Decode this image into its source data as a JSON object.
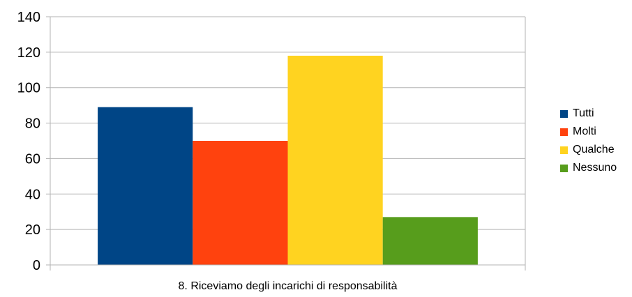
{
  "chart_data": {
    "type": "bar",
    "categories": [
      "8. Riceviamo degli incarichi di responsabilità"
    ],
    "series": [
      {
        "name": "Tutti",
        "values": [
          89
        ],
        "color": "#004586"
      },
      {
        "name": "Molti",
        "values": [
          70
        ],
        "color": "#ff420e"
      },
      {
        "name": "Qualche",
        "values": [
          118
        ],
        "color": "#ffd320"
      },
      {
        "name": "Nessuno",
        "values": [
          27
        ],
        "color": "#579d1c"
      }
    ],
    "ylim": [
      0,
      140
    ],
    "yticks": [
      "0",
      "20",
      "40",
      "60",
      "80",
      "100",
      "120",
      "140"
    ],
    "grid": true,
    "legend_position": "right"
  }
}
